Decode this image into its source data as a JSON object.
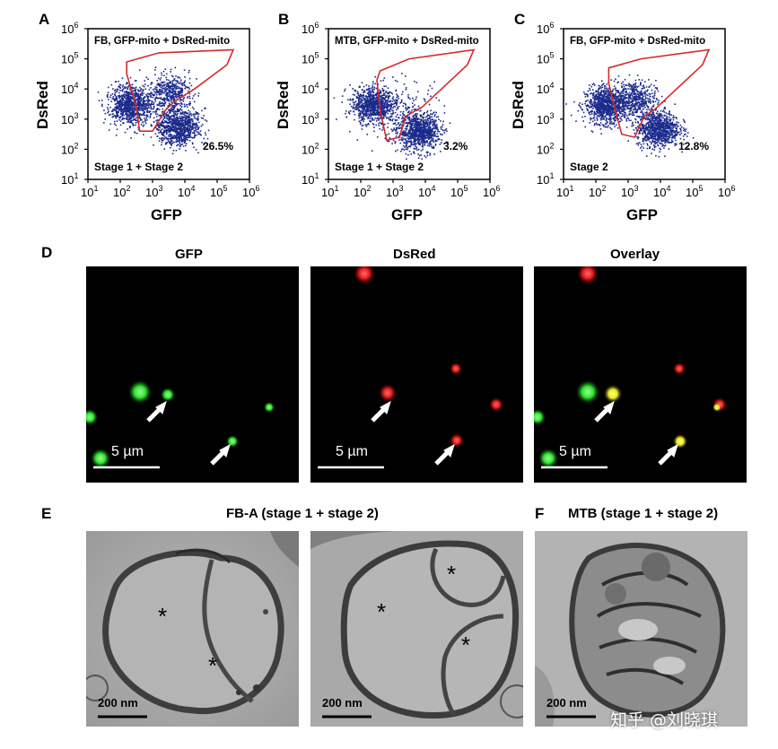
{
  "figure": {
    "panels": {
      "A": {
        "letter": "A",
        "title": "FB, GFP-mito + DsRed-mito",
        "stage": "Stage 1 + Stage 2",
        "percent": "26.5%"
      },
      "B": {
        "letter": "B",
        "title": "MTB, GFP-mito + DsRed-mito",
        "stage": "Stage 1 + Stage 2",
        "percent": "3.2%"
      },
      "C": {
        "letter": "C",
        "title": "FB, GFP-mito + DsRed-mito",
        "stage": "Stage 2",
        "percent": "12.8%"
      }
    },
    "axes": {
      "xlabel": "GFP",
      "ylabel": "DsRed",
      "tick_base": "10",
      "xticks": [
        "1",
        "2",
        "3",
        "4",
        "5",
        "6"
      ],
      "yticks": [
        "1",
        "2",
        "3",
        "4",
        "5",
        "6"
      ]
    },
    "microscopy": {
      "letter": "D",
      "channels": [
        "GFP",
        "DsRed",
        "Overlay"
      ],
      "scalebar": "5 µm"
    },
    "tem": {
      "letter_e": "E",
      "title_e": "FB-A (stage 1 + stage 2)",
      "letter_f": "F",
      "title_f": "MTB (stage 1 + stage 2)",
      "scalebar": "200 nm",
      "asterisk": "*"
    },
    "watermark": "知乎 @刘晓琪",
    "colors": {
      "dots": "#1b2a8c",
      "gate": "#d42a2a",
      "gfp": "#2fe02f",
      "dsred": "#e01818",
      "overlay": "#e8e820"
    }
  },
  "chart_data": [
    {
      "type": "scatter",
      "title": "FB, GFP-mito + DsRed-mito",
      "xlabel": "GFP",
      "ylabel": "DsRed",
      "xscale": "log",
      "yscale": "log",
      "xlim": [
        10,
        1000000
      ],
      "ylim": [
        10,
        1000000
      ],
      "clusters": [
        {
          "x": 200,
          "y": 3000,
          "density": "high"
        },
        {
          "x": 3000,
          "y": 8000,
          "density": "medium"
        },
        {
          "x": 6000,
          "y": 600,
          "density": "high"
        }
      ],
      "gate_percent": 26.5,
      "annotation": "Stage 1 + Stage 2"
    },
    {
      "type": "scatter",
      "title": "MTB, GFP-mito + DsRed-mito",
      "xlabel": "GFP",
      "ylabel": "DsRed",
      "xscale": "log",
      "yscale": "log",
      "xlim": [
        10,
        1000000
      ],
      "ylim": [
        10,
        1000000
      ],
      "clusters": [
        {
          "x": 220,
          "y": 3000,
          "density": "high"
        },
        {
          "x": 6000,
          "y": 400,
          "density": "high"
        },
        {
          "x": 2000,
          "y": 2000,
          "density": "low"
        }
      ],
      "gate_percent": 3.2,
      "annotation": "Stage 1 + Stage 2"
    },
    {
      "type": "scatter",
      "title": "FB, GFP-mito + DsRed-mito",
      "xlabel": "GFP",
      "ylabel": "DsRed",
      "xscale": "log",
      "yscale": "log",
      "xlim": [
        10,
        1000000
      ],
      "ylim": [
        10,
        1000000
      ],
      "clusters": [
        {
          "x": 200,
          "y": 3000,
          "density": "high"
        },
        {
          "x": 1500,
          "y": 5000,
          "density": "medium"
        },
        {
          "x": 8000,
          "y": 500,
          "density": "high"
        }
      ],
      "gate_percent": 12.8,
      "annotation": "Stage 2"
    }
  ]
}
